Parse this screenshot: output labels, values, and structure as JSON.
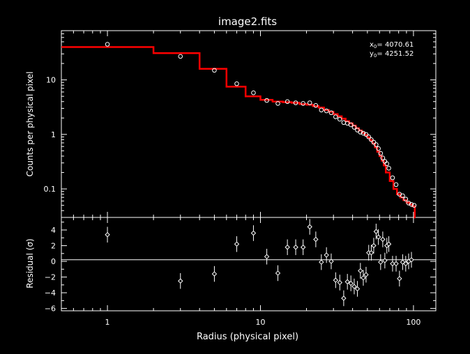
{
  "chart_data": {
    "type": "scatter",
    "title": "image2.fits",
    "annotation": {
      "x0_label": "x",
      "x0_sub": "0",
      "x0_value": "= 4070.61",
      "y0_label": "y",
      "y0_sub": "0",
      "y0_value": "= 4251.52"
    },
    "top_panel": {
      "ylabel": "Counts per physical pixel",
      "yscale": "log",
      "ylim": [
        0.03,
        80
      ],
      "yticks": [
        0.1,
        1,
        10
      ],
      "ytick_labels": [
        "0.1",
        "1",
        "10"
      ],
      "points": [
        [
          1,
          45
        ],
        [
          3,
          27
        ],
        [
          5,
          15
        ],
        [
          7,
          8.5
        ],
        [
          9,
          5.8
        ],
        [
          11,
          4.2
        ],
        [
          13,
          3.7
        ],
        [
          15,
          4.0
        ],
        [
          17,
          3.8
        ],
        [
          19,
          3.7
        ],
        [
          21,
          3.8
        ],
        [
          23,
          3.4
        ],
        [
          25,
          2.8
        ],
        [
          27,
          2.7
        ],
        [
          29,
          2.5
        ],
        [
          31,
          2.1
        ],
        [
          33,
          1.9
        ],
        [
          35,
          1.65
        ],
        [
          37,
          1.6
        ],
        [
          39,
          1.5
        ],
        [
          41,
          1.35
        ],
        [
          43,
          1.2
        ],
        [
          45,
          1.1
        ],
        [
          47,
          1.05
        ],
        [
          49,
          1.0
        ],
        [
          51,
          0.9
        ],
        [
          53,
          0.8
        ],
        [
          55,
          0.72
        ],
        [
          57,
          0.65
        ],
        [
          59,
          0.55
        ],
        [
          61,
          0.45
        ],
        [
          63,
          0.37
        ],
        [
          65,
          0.32
        ],
        [
          67,
          0.29
        ],
        [
          69,
          0.24
        ],
        [
          73,
          0.16
        ],
        [
          77,
          0.12
        ],
        [
          81,
          0.08
        ],
        [
          85,
          0.075
        ],
        [
          89,
          0.065
        ],
        [
          93,
          0.055
        ],
        [
          97,
          0.052
        ],
        [
          101,
          0.05
        ]
      ],
      "model_color": "#ff0000",
      "model_steps": [
        [
          0.5,
          2,
          40
        ],
        [
          2,
          4,
          31
        ],
        [
          4,
          6,
          16
        ],
        [
          6,
          8,
          7.5
        ],
        [
          8,
          10,
          5.0
        ],
        [
          10,
          12,
          4.3
        ],
        [
          12,
          14,
          4.0
        ],
        [
          14,
          16,
          3.9
        ],
        [
          16,
          18,
          3.8
        ],
        [
          18,
          20,
          3.6
        ],
        [
          20,
          22,
          3.5
        ],
        [
          22,
          24,
          3.3
        ],
        [
          24,
          26,
          3.1
        ],
        [
          26,
          28,
          2.8
        ],
        [
          28,
          30,
          2.6
        ],
        [
          30,
          32,
          2.35
        ],
        [
          32,
          34,
          2.15
        ],
        [
          34,
          36,
          1.95
        ],
        [
          36,
          38,
          1.75
        ],
        [
          38,
          40,
          1.6
        ],
        [
          40,
          42,
          1.45
        ],
        [
          42,
          44,
          1.3
        ],
        [
          44,
          46,
          1.18
        ],
        [
          46,
          48,
          1.07
        ],
        [
          48,
          50,
          0.98
        ],
        [
          50,
          52,
          0.88
        ],
        [
          52,
          54,
          0.78
        ],
        [
          54,
          56,
          0.68
        ],
        [
          56,
          58,
          0.58
        ],
        [
          58,
          60,
          0.48
        ],
        [
          60,
          62,
          0.4
        ],
        [
          62,
          64,
          0.33
        ],
        [
          64,
          66,
          0.27
        ],
        [
          66,
          70,
          0.2
        ],
        [
          70,
          74,
          0.14
        ],
        [
          74,
          78,
          0.1
        ],
        [
          78,
          82,
          0.08
        ],
        [
          82,
          86,
          0.07
        ],
        [
          86,
          90,
          0.062
        ],
        [
          90,
          94,
          0.056
        ],
        [
          94,
          98,
          0.052
        ],
        [
          98,
          102,
          0.048
        ],
        [
          102,
          103,
          0.03
        ]
      ]
    },
    "bottom_panel": {
      "ylabel": "Residual (σ)",
      "ylim": [
        -6.3,
        5.6
      ],
      "yticks": [
        -6,
        -4,
        -2,
        0,
        2,
        4
      ],
      "ytick_labels": [
        "−6",
        "−4",
        "−2",
        "0",
        "2",
        "4"
      ],
      "zero_line": 0.2,
      "points": [
        [
          1,
          3.4
        ],
        [
          3,
          -2.5
        ],
        [
          5,
          -1.6
        ],
        [
          7,
          2.2
        ],
        [
          9,
          3.6
        ],
        [
          11,
          0.6
        ],
        [
          13,
          -1.5
        ],
        [
          15,
          1.8
        ],
        [
          17,
          1.8
        ],
        [
          19,
          1.8
        ],
        [
          21,
          4.4
        ],
        [
          23,
          2.8
        ],
        [
          25,
          -0.1
        ],
        [
          27,
          0.8
        ],
        [
          29,
          0.0
        ],
        [
          31,
          -2.4
        ],
        [
          33,
          -2.7
        ],
        [
          35,
          -4.7
        ],
        [
          37,
          -2.6
        ],
        [
          39,
          -2.8
        ],
        [
          41,
          -3.2
        ],
        [
          43,
          -3.5
        ],
        [
          45,
          -1.2
        ],
        [
          47,
          -2.1
        ],
        [
          49,
          -1.7
        ],
        [
          51,
          1.1
        ],
        [
          53,
          1.1
        ],
        [
          55,
          2.0
        ],
        [
          57,
          3.8
        ],
        [
          59,
          3.1
        ],
        [
          61,
          -0.1
        ],
        [
          63,
          2.8
        ],
        [
          65,
          0.1
        ],
        [
          67,
          2.0
        ],
        [
          69,
          2.2
        ],
        [
          73,
          -0.3
        ],
        [
          77,
          -0.3
        ],
        [
          81,
          -2.2
        ],
        [
          85,
          -0.1
        ],
        [
          89,
          -0.3
        ],
        [
          93,
          0.0
        ],
        [
          97,
          0.2
        ]
      ],
      "error": 1.0
    },
    "xaxis": {
      "label": "Radius (physical pixel)",
      "xscale": "log",
      "xlim": [
        0.5,
        140
      ],
      "xticks": [
        1,
        10,
        100
      ],
      "xtick_labels": [
        "1",
        "10",
        "100"
      ]
    }
  }
}
